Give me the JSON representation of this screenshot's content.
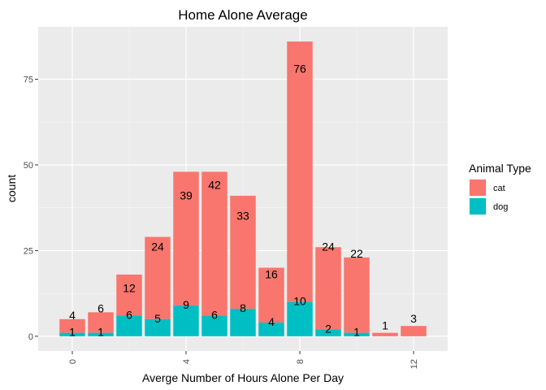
{
  "chart_data": {
    "type": "bar",
    "stacked": true,
    "title": "Home Alone Average",
    "xlabel": "Averge Number of Hours Alone Per Day",
    "ylabel": "count",
    "x": [
      0,
      1,
      2,
      3,
      4,
      5,
      6,
      7,
      8,
      9,
      10,
      11,
      12
    ],
    "xlim": [
      -1.2,
      13.2
    ],
    "ylim": [
      -4.3,
      90.3
    ],
    "xticks": [
      "0",
      "4",
      "8",
      "12"
    ],
    "xtick_values": [
      0,
      4,
      8,
      12
    ],
    "yticks": [
      "0",
      "25",
      "50",
      "75"
    ],
    "ytick_values": [
      0,
      25,
      50,
      75
    ],
    "grid": true,
    "legend_position": "right",
    "series": [
      {
        "name": "cat",
        "color": "#F8766D",
        "values": [
          4,
          6,
          12,
          24,
          39,
          42,
          33,
          16,
          76,
          24,
          22,
          1,
          3
        ],
        "labels": [
          "4",
          "6",
          "12",
          "24",
          "39",
          "42",
          "33",
          "16",
          "76",
          "24",
          "22",
          "1",
          "3"
        ]
      },
      {
        "name": "dog",
        "color": "#00BFC4",
        "values": [
          1,
          1,
          6,
          5,
          9,
          6,
          8,
          4,
          10,
          2,
          1,
          0,
          0
        ],
        "labels": [
          "1",
          "1",
          "6",
          "5",
          "9",
          "6",
          "8",
          "4",
          "10",
          "2",
          "1",
          "",
          ""
        ]
      }
    ],
    "legend": {
      "title": "Animal Type",
      "entries": [
        "cat",
        "dog"
      ]
    }
  }
}
